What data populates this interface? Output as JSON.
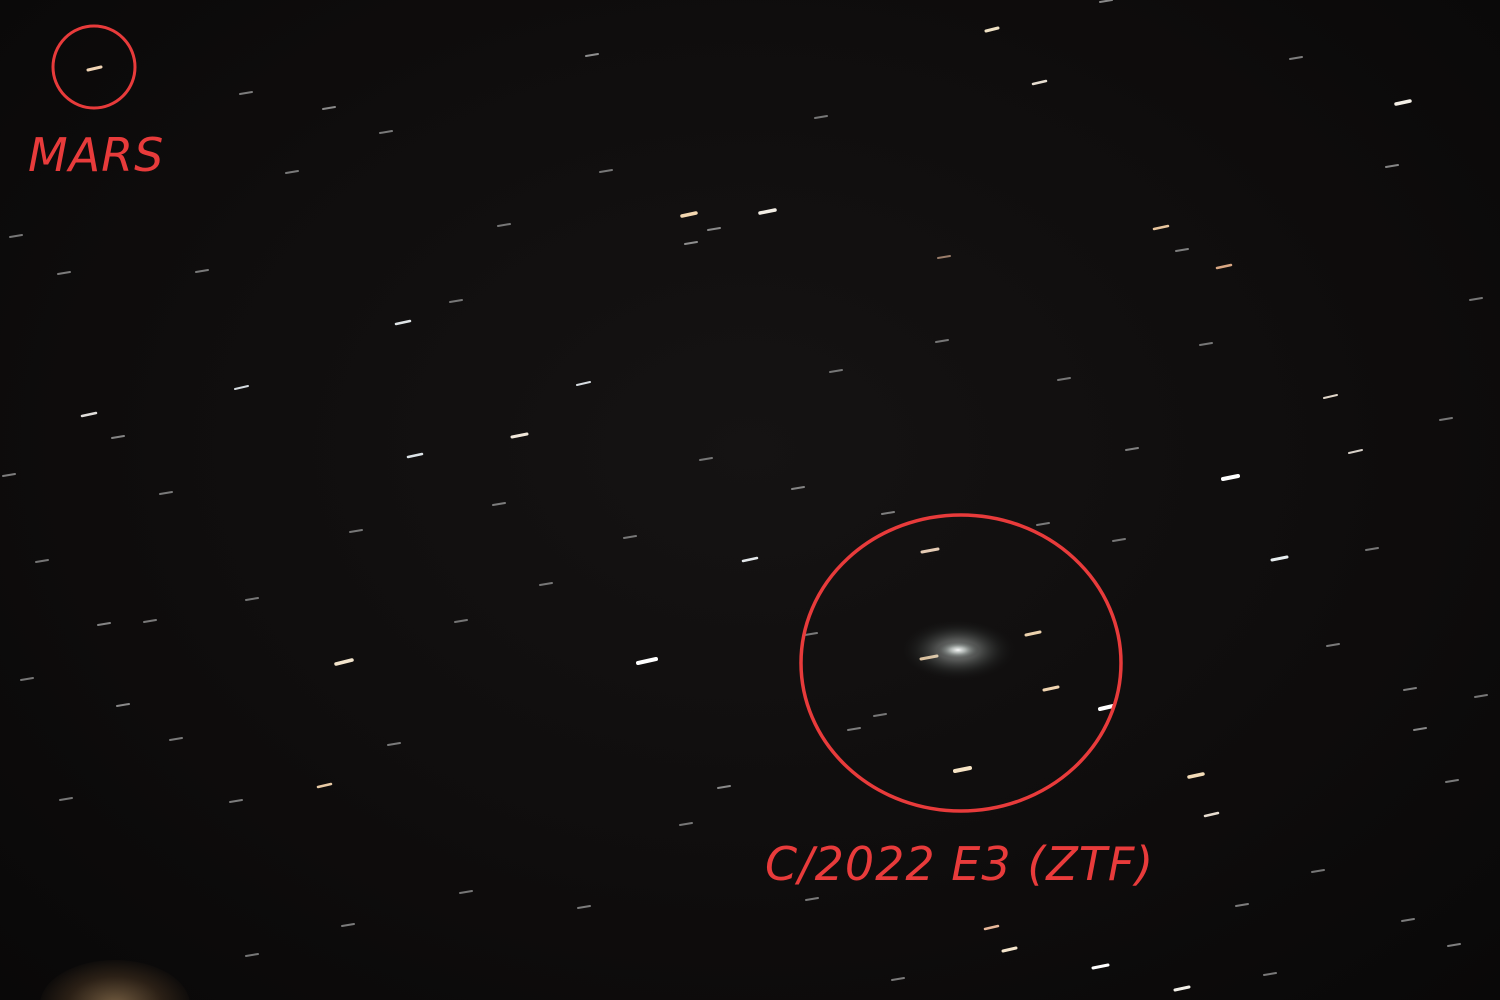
{
  "annotations": {
    "planet_label": "MARS",
    "comet_label": "C/2022 E3 (ZTF)",
    "marker_color": "#e83b3b"
  },
  "scene": {
    "background": "night sky star field with short star trails",
    "objects": [
      "planet-mars",
      "comet-c2022-e3-ztf",
      "background-stars"
    ]
  }
}
